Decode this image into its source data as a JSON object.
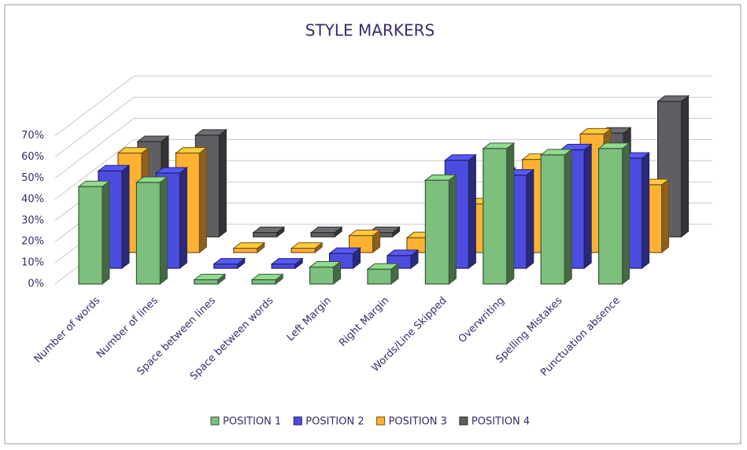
{
  "chart_data": {
    "type": "bar3d",
    "title": "STYLE MARKERS",
    "categories": [
      "Number of words",
      "Number of lines",
      "Space between lines",
      "Space between words",
      "Left Margin",
      "Right Margin",
      "Words/Line Skipped",
      "Overwriting",
      "Spelling Mistakes",
      "Punctuation absence"
    ],
    "series": [
      {
        "name": "POSITION 1",
        "color": "#7dbf7d",
        "values": [
          46,
          48,
          2,
          2,
          8,
          7,
          49,
          64,
          61,
          64
        ]
      },
      {
        "name": "POSITION 2",
        "color": "#4c4ce0",
        "values": [
          46,
          45,
          2,
          2,
          7,
          6,
          51,
          44,
          56,
          52
        ]
      },
      {
        "name": "POSITION 3",
        "color": "#ffb133",
        "values": [
          47,
          47,
          2,
          2,
          8,
          7,
          23,
          44,
          56,
          32
        ]
      },
      {
        "name": "POSITION 4",
        "color": "#5f5f63",
        "values": [
          45,
          48,
          2,
          2,
          2,
          7,
          30,
          35,
          49,
          64
        ]
      }
    ],
    "ylim": [
      0,
      70
    ],
    "yticks": [
      {
        "value": 0,
        "label": "0%"
      },
      {
        "value": 10,
        "label": "10%"
      },
      {
        "value": 20,
        "label": "20%"
      },
      {
        "value": 30,
        "label": "30%"
      },
      {
        "value": 40,
        "label": "40%"
      },
      {
        "value": 50,
        "label": "50%"
      },
      {
        "value": 60,
        "label": "60%"
      },
      {
        "value": 70,
        "label": "70%"
      }
    ],
    "grid": true,
    "legend": "bottom"
  }
}
